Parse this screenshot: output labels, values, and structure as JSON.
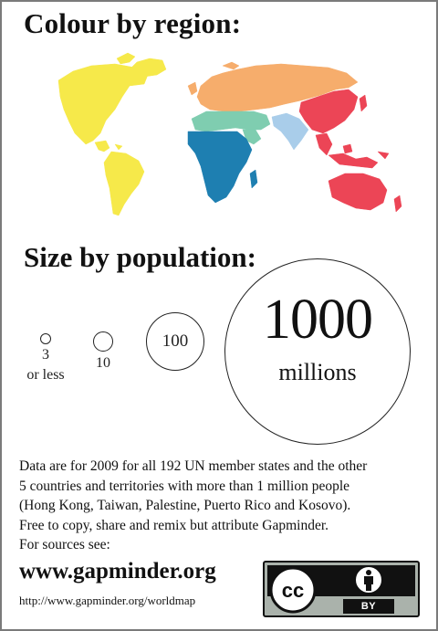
{
  "region_section": {
    "title": "Colour by region:",
    "regions": [
      {
        "name": "america",
        "color": "#f6e94a"
      },
      {
        "name": "europe-central-asia",
        "color": "#f6ad6c"
      },
      {
        "name": "middle-east-north-africa",
        "color": "#7fcdb0"
      },
      {
        "name": "sub-saharan-africa",
        "color": "#1e7fb1"
      },
      {
        "name": "south-asia",
        "color": "#a9cdea"
      },
      {
        "name": "east-asia-pacific",
        "color": "#ec4556"
      }
    ]
  },
  "population_section": {
    "title": "Size by population:",
    "legend": [
      {
        "value": 3,
        "label": "3",
        "sublabel": "or less"
      },
      {
        "value": 10,
        "label": "10",
        "sublabel": ""
      },
      {
        "value": 100,
        "label": "100",
        "sublabel": ""
      },
      {
        "value": 1000,
        "label": "1000",
        "sublabel": "millions"
      }
    ]
  },
  "info": {
    "line1": "Data are for 2009 for all 192 UN member states and the other",
    "line2": "5 countries and territories with more than 1 million people",
    "line3": "(Hong Kong, Taiwan, Palestine, Puerto Rico and Kosovo).",
    "line4": "Free to copy, share and remix but attribute Gapminder.",
    "line5": "For sources see:"
  },
  "footer": {
    "website": "www.gapminder.org",
    "url": "http://www.gapminder.org/worldmap"
  },
  "license": {
    "cc_text": "cc",
    "by_text": "BY"
  }
}
